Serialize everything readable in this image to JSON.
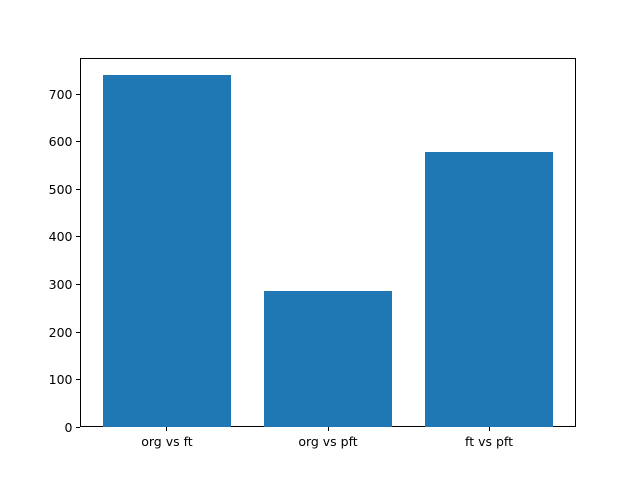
{
  "figure": {
    "background": "#ffffff",
    "plot_background": "#ffffff",
    "spine_color": "#000000",
    "text_color": "#000000"
  },
  "chart_data": {
    "type": "bar",
    "categories": [
      "org vs ft",
      "org vs pft",
      "ft vs pft"
    ],
    "values": [
      740,
      287,
      579
    ],
    "title": "",
    "xlabel": "",
    "ylabel": "",
    "ylim": [
      0,
      777
    ],
    "yticks": [
      0,
      100,
      200,
      300,
      400,
      500,
      600,
      700
    ],
    "bar_color": "#1f77b4",
    "bar_width_fraction": 0.8,
    "grid": false,
    "legend": "none"
  }
}
